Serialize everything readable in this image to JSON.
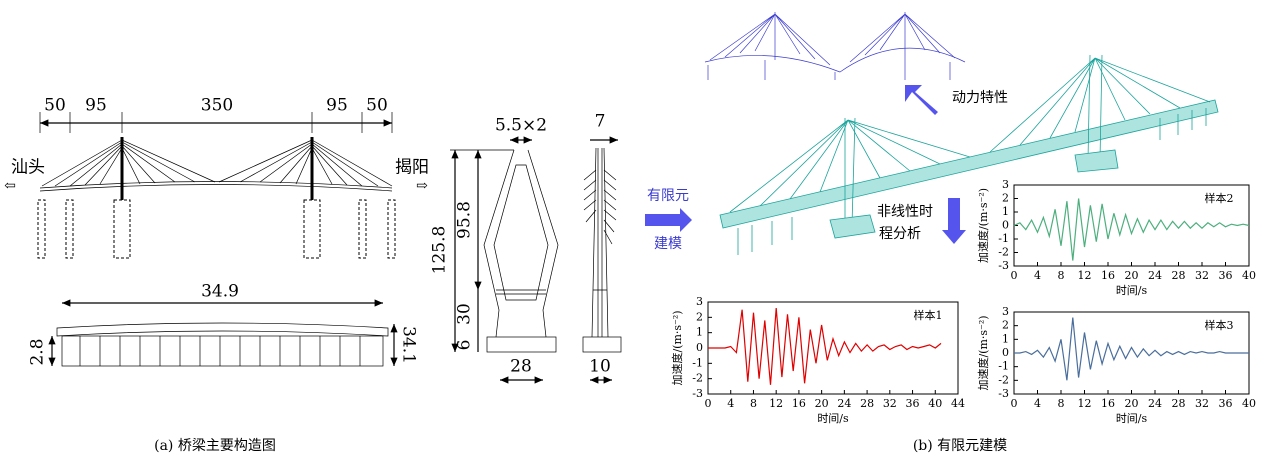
{
  "panel_a": {
    "caption": "(a) 桥梁主要构造图",
    "spans": [
      "50",
      "95",
      "350",
      "95",
      "50"
    ],
    "left_city": "汕头",
    "right_city": "揭阳",
    "deck_width": "34.9",
    "deck_height": "2.8",
    "deck_side": "34.1",
    "tower_top": "5.5×2",
    "tower_height": "125.8",
    "tower_upper": "95.8",
    "tower_lower": "30",
    "tower_base": "6",
    "tower_width": "28",
    "side_top": "7",
    "side_base": "10"
  },
  "panel_b": {
    "caption": "(b) 有限元建模",
    "dynamic_label": "动力特性",
    "fem_label": [
      "有限元",
      "建模"
    ],
    "nonlinear_label": [
      "非线性时",
      "程分析"
    ],
    "charts": [
      {
        "type": "line",
        "title": "样本1",
        "color": "#e00000",
        "x_label": "时间/s",
        "y_label": "加速度/(m·s⁻²)",
        "xlim": [
          0,
          44
        ],
        "xticks": [
          0,
          4,
          8,
          12,
          16,
          20,
          24,
          28,
          32,
          36,
          40,
          44
        ],
        "ylim": [
          -3,
          3
        ],
        "yticks": [
          -3,
          -2,
          -1,
          0,
          1,
          2,
          3
        ],
        "x": [
          0,
          1,
          2,
          3,
          4,
          5,
          6,
          7,
          8,
          9,
          10,
          11,
          12,
          13,
          14,
          15,
          16,
          17,
          18,
          19,
          20,
          21,
          22,
          23,
          24,
          25,
          26,
          27,
          28,
          29,
          30,
          31,
          32,
          33,
          34,
          35,
          36,
          37,
          38,
          39,
          40,
          41
        ],
        "values": [
          0,
          0,
          0,
          0,
          0.1,
          -0.3,
          2.5,
          -2.2,
          2.3,
          -2.0,
          1.8,
          -2.4,
          2.6,
          -1.9,
          2.2,
          -1.5,
          2.0,
          -2.3,
          1.2,
          -1.0,
          1.5,
          -0.8,
          0.6,
          -0.5,
          0.4,
          -0.3,
          0.3,
          -0.2,
          0.2,
          -0.2,
          0.1,
          0.2,
          -0.1,
          0.1,
          0.2,
          -0.1,
          0.1,
          0,
          0.1,
          0.2,
          0,
          0.3
        ]
      },
      {
        "type": "line",
        "title": "样本2",
        "color": "#4caf7d",
        "x_label": "时间/s",
        "y_label": "加速度/(m·s⁻²)",
        "xlim": [
          0,
          40
        ],
        "xticks": [
          0,
          4,
          8,
          12,
          16,
          20,
          24,
          28,
          32,
          36,
          40
        ],
        "ylim": [
          -3,
          3
        ],
        "yticks": [
          -3,
          -2,
          -1,
          0,
          1,
          2,
          3
        ],
        "x": [
          0,
          1,
          2,
          3,
          4,
          5,
          6,
          7,
          8,
          9,
          10,
          11,
          12,
          13,
          14,
          15,
          16,
          17,
          18,
          19,
          20,
          21,
          22,
          23,
          24,
          25,
          26,
          27,
          28,
          29,
          30,
          31,
          32,
          33,
          34,
          35,
          36,
          37,
          38,
          39,
          40
        ],
        "values": [
          0,
          0.2,
          -0.3,
          0.4,
          -0.5,
          0.6,
          -0.8,
          1.2,
          -1.5,
          1.8,
          -2.6,
          2.0,
          -1.6,
          1.5,
          -1.2,
          1.6,
          -1.0,
          0.9,
          -0.7,
          0.8,
          -0.6,
          0.5,
          -0.5,
          0.4,
          -0.3,
          0.4,
          -0.3,
          0.3,
          -0.2,
          0.3,
          -0.2,
          0.2,
          -0.2,
          0.2,
          -0.1,
          0.2,
          -0.1,
          0.1,
          0,
          0.1,
          0
        ]
      },
      {
        "type": "line",
        "title": "样本3",
        "color": "#4a6e9c",
        "x_label": "时间/s",
        "y_label": "加速度/(m·s⁻²)",
        "xlim": [
          0,
          40
        ],
        "xticks": [
          0,
          4,
          8,
          12,
          16,
          20,
          24,
          28,
          32,
          36,
          40
        ],
        "ylim": [
          -3,
          3
        ],
        "yticks": [
          -3,
          -2,
          -1,
          0,
          1,
          2,
          3
        ],
        "x": [
          0,
          1,
          2,
          3,
          4,
          5,
          6,
          7,
          8,
          9,
          10,
          11,
          12,
          13,
          14,
          15,
          16,
          17,
          18,
          19,
          20,
          21,
          22,
          23,
          24,
          25,
          26,
          27,
          28,
          29,
          30,
          31,
          32,
          33,
          34,
          35,
          36,
          37,
          38,
          39,
          40
        ],
        "values": [
          0,
          0,
          0.1,
          -0.1,
          0.2,
          -0.3,
          0.4,
          -0.6,
          1.0,
          -2.0,
          2.6,
          -1.8,
          1.5,
          -1.2,
          0.9,
          -0.8,
          0.7,
          -0.5,
          0.5,
          -0.4,
          0.4,
          -0.3,
          0.3,
          -0.2,
          0.2,
          -0.2,
          0.1,
          -0.1,
          0.1,
          -0.1,
          0.1,
          0,
          0.1,
          0,
          0,
          0.1,
          0,
          0,
          0,
          0,
          0
        ]
      }
    ]
  }
}
